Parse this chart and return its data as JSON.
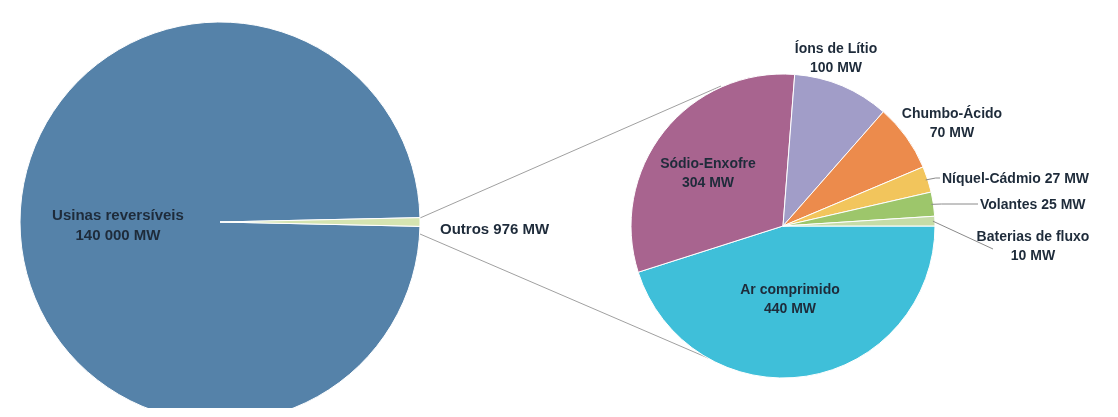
{
  "chart_data": [
    {
      "type": "pie",
      "categories": [
        "Usinas reversíveis",
        "Outros"
      ],
      "values": [
        140000,
        976
      ],
      "value_labels": [
        "140 000 MW",
        "976 MW"
      ],
      "colors": [
        "#5582a9",
        "#d5e4b1"
      ]
    },
    {
      "type": "pie",
      "categories": [
        "Ar comprimido",
        "Sódio-Enxofre",
        "Íons de Lítio",
        "Chumbo-Ácido",
        "Níquel-Cádmio",
        "Volantes",
        "Baterias de fluxo"
      ],
      "values": [
        440,
        304,
        100,
        70,
        27,
        25,
        10
      ],
      "value_labels": [
        "440 MW",
        "304 MW",
        "100 MW",
        "70 MW",
        "27 MW",
        "25 MW",
        "10 MW"
      ],
      "colors": [
        "#3fbfd9",
        "#a8648f",
        "#a19dc8",
        "#ec8b4c",
        "#f2c55c",
        "#9dc66b",
        "#c6dca7"
      ]
    }
  ]
}
